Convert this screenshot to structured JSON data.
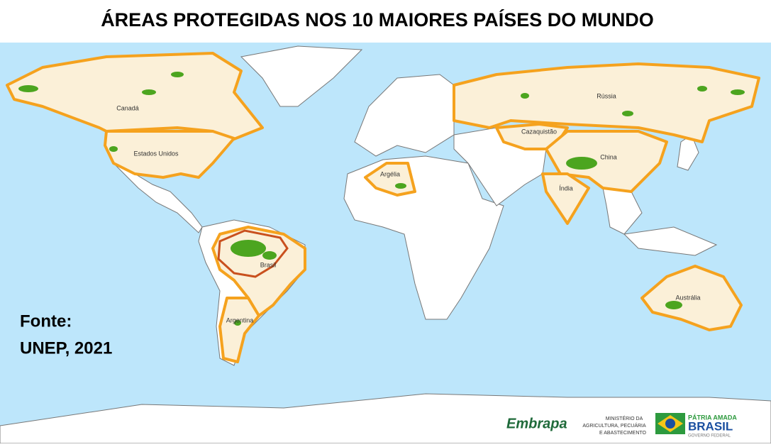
{
  "header": {
    "title": "ÁREAS PROTEGIDAS NOS 10 MAIORES PAÍSES DO MUNDO"
  },
  "map": {
    "labels": [
      "Canadá",
      "Estados Unidos",
      "Rússia",
      "Cazaquistão",
      "China",
      "Índia",
      "Argélia",
      "Brasil",
      "Argentina",
      "Austrália"
    ]
  },
  "source": {
    "lines": [
      "Fonte:",
      "UNEP, 2021"
    ]
  },
  "logos": {
    "embrapa": "Embrapa",
    "ministry": [
      "MINISTÉRIO DA",
      "AGRICULTURA, PECUÁRIA",
      "E ABASTECIMENTO"
    ],
    "government": [
      "PÁTRIA AMADA",
      "BRASIL",
      "GOVERNO FEDERAL"
    ]
  }
}
